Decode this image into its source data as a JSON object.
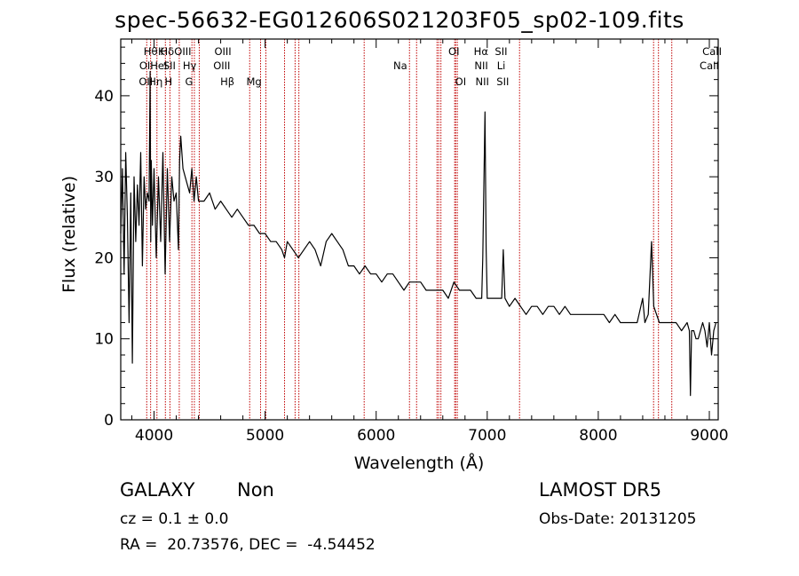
{
  "chart_data": {
    "type": "line",
    "title": "spec-56632-EG012606S021203F05_sp02-109.fits",
    "xlabel": "Wavelength (Å)",
    "ylabel": "Flux (relative)",
    "xlim": [
      3700,
      9080
    ],
    "ylim": [
      0,
      47
    ],
    "xticks": [
      4000,
      5000,
      6000,
      7000,
      8000,
      9000
    ],
    "yticks": [
      0,
      10,
      20,
      30,
      40
    ],
    "grid": false,
    "series": [
      {
        "color": "#000000",
        "x": [
          3700,
          3715,
          3730,
          3745,
          3760,
          3775,
          3790,
          3805,
          3820,
          3835,
          3850,
          3865,
          3880,
          3895,
          3910,
          3925,
          3940,
          3955,
          3965,
          3970,
          3975,
          3985,
          4000,
          4020,
          4040,
          4060,
          4080,
          4100,
          4120,
          4140,
          4160,
          4180,
          4200,
          4220,
          4230,
          4240,
          4260,
          4280,
          4300,
          4320,
          4340,
          4360,
          4380,
          4400,
          4450,
          4500,
          4550,
          4600,
          4650,
          4700,
          4750,
          4800,
          4850,
          4900,
          4950,
          5000,
          5050,
          5100,
          5150,
          5175,
          5200,
          5250,
          5300,
          5350,
          5400,
          5450,
          5500,
          5550,
          5600,
          5650,
          5700,
          5750,
          5800,
          5850,
          5900,
          5950,
          6000,
          6050,
          6100,
          6150,
          6200,
          6250,
          6300,
          6350,
          6400,
          6450,
          6500,
          6550,
          6600,
          6650,
          6700,
          6750,
          6800,
          6850,
          6900,
          6950,
          6960,
          6980,
          6990,
          7000,
          7050,
          7100,
          7130,
          7145,
          7160,
          7200,
          7250,
          7300,
          7350,
          7400,
          7450,
          7500,
          7550,
          7600,
          7650,
          7700,
          7750,
          7800,
          7850,
          7900,
          7950,
          8000,
          8050,
          8100,
          8150,
          8200,
          8250,
          8300,
          8350,
          8400,
          8420,
          8450,
          8480,
          8500,
          8550,
          8600,
          8650,
          8700,
          8750,
          8800,
          8820,
          8830,
          8840,
          8860,
          8880,
          8900,
          8920,
          8940,
          8960,
          8980,
          9000,
          9020,
          9040,
          9060
        ],
        "y": [
          23,
          31,
          18,
          33,
          25,
          12,
          28,
          7,
          30,
          22,
          29,
          24,
          33,
          19,
          30,
          26,
          28,
          27,
          43,
          22,
          32,
          24,
          31,
          20,
          30,
          22,
          33,
          18,
          31,
          22,
          30,
          27,
          28,
          21,
          32,
          35,
          31,
          30,
          29,
          28,
          31,
          27,
          30,
          27,
          27,
          28,
          26,
          27,
          26,
          25,
          26,
          25,
          24,
          24,
          23,
          23,
          22,
          22,
          21,
          20,
          22,
          21,
          20,
          21,
          22,
          21,
          19,
          22,
          23,
          22,
          21,
          19,
          19,
          18,
          19,
          18,
          18,
          17,
          18,
          18,
          17,
          16,
          17,
          17,
          17,
          16,
          16,
          16,
          16,
          15,
          17,
          16,
          16,
          16,
          15,
          15,
          20,
          38,
          21,
          15,
          15,
          15,
          15,
          21,
          15,
          14,
          15,
          14,
          13,
          14,
          14,
          13,
          14,
          14,
          13,
          14,
          13,
          13,
          13,
          13,
          13,
          13,
          13,
          12,
          13,
          12,
          12,
          12,
          12,
          15,
          12,
          13,
          22,
          14,
          12,
          12,
          12,
          12,
          11,
          12,
          11,
          3,
          11,
          11,
          10,
          10,
          11,
          12,
          11,
          9,
          12,
          8,
          11,
          12
        ]
      }
    ],
    "lines_x": [
      3934,
      3969,
      4026,
      4102,
      4143,
      4227,
      4341,
      4363,
      4407,
      4861,
      4959,
      5007,
      5175,
      5270,
      5304,
      5892,
      6300,
      6364,
      6548,
      6563,
      6583,
      6707,
      6716,
      6731,
      7291,
      8498,
      8542,
      8662
    ]
  },
  "annotations": [
    {
      "text": "Hθ",
      "x": 3969,
      "row": 0
    },
    {
      "text": "K",
      "x": 4066,
      "row": 0
    },
    {
      "text": "Hδ",
      "x": 4118,
      "row": 0
    },
    {
      "text": "OIII",
      "x": 4259,
      "row": 0
    },
    {
      "text": "OIII",
      "x": 4620,
      "row": 0
    },
    {
      "text": "OI",
      "x": 6700,
      "row": 0
    },
    {
      "text": "Hα",
      "x": 6944,
      "row": 0
    },
    {
      "text": "SII",
      "x": 7125,
      "row": 0
    },
    {
      "text": "CaII",
      "x": 9025,
      "row": 0
    },
    {
      "text": "OII",
      "x": 3930,
      "row": 1
    },
    {
      "text": "HeI",
      "x": 4042,
      "row": 1
    },
    {
      "text": "SII",
      "x": 4139,
      "row": 1
    },
    {
      "text": "Hγ",
      "x": 4320,
      "row": 1
    },
    {
      "text": "OIII",
      "x": 4610,
      "row": 1
    },
    {
      "text": "Na",
      "x": 6217,
      "row": 1
    },
    {
      "text": "NII",
      "x": 6946,
      "row": 1
    },
    {
      "text": "Li",
      "x": 7126,
      "row": 1
    },
    {
      "text": "CaII",
      "x": 9000,
      "row": 1
    },
    {
      "text": "OII",
      "x": 3926,
      "row": 2
    },
    {
      "text": "Hη",
      "x": 4014,
      "row": 2
    },
    {
      "text": "H",
      "x": 4130,
      "row": 2
    },
    {
      "text": "G",
      "x": 4315,
      "row": 2
    },
    {
      "text": "Hβ",
      "x": 4660,
      "row": 2
    },
    {
      "text": "Mg",
      "x": 4900,
      "row": 2
    },
    {
      "text": "OI",
      "x": 6761,
      "row": 2
    },
    {
      "text": "NII",
      "x": 6955,
      "row": 2
    },
    {
      "text": "SII",
      "x": 7140,
      "row": 2
    }
  ],
  "info": {
    "class": "GALAXY",
    "subclass": "Non",
    "cz": "cz = 0.1 ± 0.0",
    "radec": "RA =  20.73576, DEC =  -4.54452",
    "survey": "LAMOST DR5",
    "obsdate": "Obs-Date: 20131205"
  }
}
